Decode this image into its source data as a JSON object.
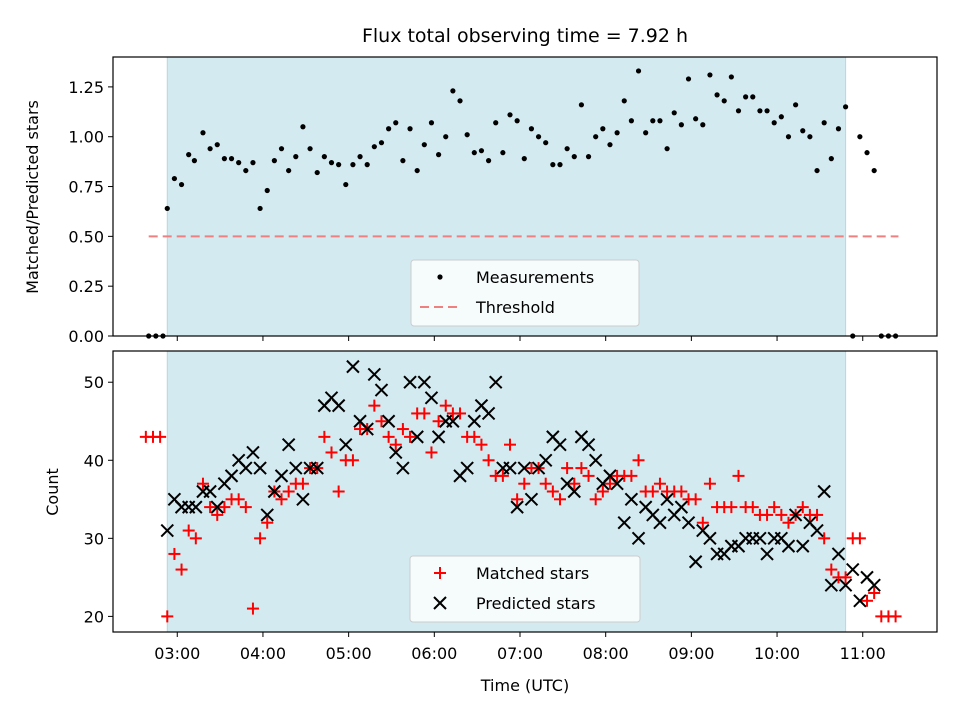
{
  "chart_data": [
    {
      "type": "scatter",
      "title": "Flux total observing time = 7.92 h",
      "xlabel": "",
      "ylabel": "Matched/Predicted stars",
      "ylim": [
        0,
        1.4
      ],
      "yticks": [
        "0.00",
        "0.25",
        "0.50",
        "0.75",
        "1.00",
        "1.25"
      ],
      "xlim": [
        "02:15",
        "11:52"
      ],
      "shaded_span": [
        "02:53",
        "10:48"
      ],
      "shade_color": "#d3eaf0",
      "threshold": {
        "name": "Threshold",
        "y": 0.5,
        "x": [
          "02:40",
          "11:25"
        ],
        "color": "#f08080"
      },
      "legend": [
        "Measurements",
        "Threshold"
      ],
      "legend_position": "lower-center",
      "series": [
        {
          "name": "Measurements",
          "marker": "dot",
          "color": "#000000",
          "x": [
            "02:40",
            "02:45",
            "02:50",
            "02:53",
            "02:58",
            "03:03",
            "03:08",
            "03:12",
            "03:18",
            "03:23",
            "03:28",
            "03:33",
            "03:38",
            "03:43",
            "03:48",
            "03:53",
            "03:58",
            "04:03",
            "04:08",
            "04:13",
            "04:18",
            "04:23",
            "04:28",
            "04:33",
            "04:38",
            "04:43",
            "04:48",
            "04:53",
            "04:58",
            "05:03",
            "05:08",
            "05:13",
            "05:18",
            "05:23",
            "05:28",
            "05:33",
            "05:38",
            "05:43",
            "05:48",
            "05:53",
            "05:58",
            "06:03",
            "06:08",
            "06:13",
            "06:18",
            "06:23",
            "06:28",
            "06:33",
            "06:38",
            "06:43",
            "06:48",
            "06:53",
            "06:58",
            "07:03",
            "07:08",
            "07:13",
            "07:18",
            "07:23",
            "07:28",
            "07:33",
            "07:38",
            "07:43",
            "07:48",
            "07:53",
            "07:58",
            "08:03",
            "08:08",
            "08:13",
            "08:18",
            "08:23",
            "08:28",
            "08:33",
            "08:38",
            "08:43",
            "08:48",
            "08:53",
            "08:58",
            "09:03",
            "09:08",
            "09:13",
            "09:18",
            "09:23",
            "09:28",
            "09:33",
            "09:38",
            "09:43",
            "09:48",
            "09:53",
            "09:58",
            "10:03",
            "10:08",
            "10:13",
            "10:18",
            "10:23",
            "10:28",
            "10:33",
            "10:38",
            "10:43",
            "10:48",
            "10:53",
            "10:58",
            "11:03",
            "11:08",
            "11:13",
            "11:18",
            "11:23"
          ],
          "y": [
            0,
            0,
            0,
            0.64,
            0.79,
            0.76,
            0.91,
            0.88,
            1.02,
            0.94,
            0.96,
            0.89,
            0.89,
            0.87,
            0.83,
            0.87,
            0.64,
            0.73,
            0.88,
            0.94,
            0.83,
            0.9,
            1.05,
            0.94,
            0.82,
            0.9,
            0.87,
            0.86,
            0.76,
            0.86,
            0.9,
            0.86,
            0.95,
            0.97,
            1.04,
            1.07,
            0.88,
            1.04,
            0.83,
            0.96,
            1.07,
            0.91,
            1.0,
            1.23,
            1.18,
            1.01,
            0.92,
            0.93,
            0.88,
            1.07,
            0.92,
            1.11,
            1.08,
            0.89,
            1.04,
            1.0,
            0.97,
            0.86,
            0.86,
            0.94,
            0.9,
            1.16,
            0.9,
            1.0,
            1.04,
            0.96,
            1.02,
            1.18,
            1.08,
            1.33,
            1.02,
            1.08,
            1.08,
            0.94,
            1.12,
            1.06,
            1.29,
            1.09,
            1.06,
            1.31,
            1.21,
            1.18,
            1.3,
            1.13,
            1.2,
            1.2,
            1.13,
            1.13,
            1.07,
            1.1,
            1.0,
            1.16,
            1.03,
            1.0,
            0.83,
            1.07,
            0.89,
            1.04,
            1.15,
            0,
            1.0,
            0.92,
            0.83,
            0,
            0,
            0
          ]
        }
      ]
    },
    {
      "type": "scatter",
      "title": "",
      "xlabel": "Time (UTC)",
      "ylabel": "Count",
      "ylim": [
        18,
        54
      ],
      "yticks": [
        "20",
        "30",
        "40",
        "50"
      ],
      "xlim": [
        "02:15",
        "11:52"
      ],
      "xticks": [
        "03:00",
        "04:00",
        "05:00",
        "06:00",
        "07:00",
        "08:00",
        "09:00",
        "10:00",
        "11:00"
      ],
      "shaded_span": [
        "02:53",
        "10:48"
      ],
      "shade_color": "#d3eaf0",
      "legend": [
        "Matched stars",
        "Predicted stars"
      ],
      "legend_position": "lower-center",
      "series": [
        {
          "name": "Matched stars",
          "marker": "plus",
          "color": "#ff0000",
          "x": [
            "02:38",
            "02:43",
            "02:48",
            "02:53",
            "02:58",
            "03:03",
            "03:08",
            "03:13",
            "03:18",
            "03:23",
            "03:28",
            "03:33",
            "03:38",
            "03:43",
            "03:48",
            "03:53",
            "03:58",
            "04:03",
            "04:08",
            "04:13",
            "04:18",
            "04:23",
            "04:28",
            "04:33",
            "04:38",
            "04:43",
            "04:48",
            "04:53",
            "04:58",
            "05:03",
            "05:08",
            "05:13",
            "05:18",
            "05:23",
            "05:28",
            "05:33",
            "05:38",
            "05:43",
            "05:48",
            "05:53",
            "05:58",
            "06:03",
            "06:08",
            "06:13",
            "06:18",
            "06:23",
            "06:28",
            "06:33",
            "06:38",
            "06:43",
            "06:48",
            "06:53",
            "06:58",
            "07:03",
            "07:08",
            "07:13",
            "07:18",
            "07:23",
            "07:28",
            "07:33",
            "07:38",
            "07:43",
            "07:48",
            "07:53",
            "07:58",
            "08:03",
            "08:08",
            "08:13",
            "08:18",
            "08:23",
            "08:28",
            "08:33",
            "08:38",
            "08:43",
            "08:48",
            "08:53",
            "08:58",
            "09:03",
            "09:08",
            "09:13",
            "09:18",
            "09:23",
            "09:28",
            "09:33",
            "09:38",
            "09:43",
            "09:48",
            "09:53",
            "09:58",
            "10:03",
            "10:08",
            "10:13",
            "10:18",
            "10:23",
            "10:28",
            "10:33",
            "10:38",
            "10:43",
            "10:48",
            "10:53",
            "10:58",
            "11:03",
            "11:08",
            "11:13",
            "11:18",
            "11:23"
          ],
          "y": [
            43,
            43,
            43,
            20,
            28,
            26,
            31,
            30,
            37,
            34,
            33,
            34,
            35,
            35,
            34,
            21,
            30,
            32,
            36,
            35,
            36,
            37,
            37,
            39,
            39,
            43,
            41,
            36,
            40,
            40,
            44,
            44,
            47,
            45,
            43,
            42,
            44,
            43,
            46,
            46,
            41,
            45,
            47,
            46,
            46,
            43,
            43,
            42,
            40,
            38,
            38,
            42,
            35,
            37,
            39,
            39,
            37,
            36,
            35,
            39,
            37,
            39,
            38,
            35,
            36,
            37,
            38,
            38,
            38,
            40,
            36,
            36,
            37,
            36,
            36,
            36,
            35,
            35,
            32,
            37,
            34,
            34,
            34,
            38,
            34,
            34,
            33,
            33,
            34,
            33,
            32,
            33,
            34,
            33,
            33,
            30,
            26,
            25,
            25,
            30,
            30,
            22,
            23,
            20,
            20,
            20
          ]
        },
        {
          "name": "Predicted stars",
          "marker": "x",
          "color": "#000000",
          "x": [
            "02:53",
            "02:58",
            "03:03",
            "03:08",
            "03:13",
            "03:18",
            "03:23",
            "03:28",
            "03:33",
            "03:38",
            "03:43",
            "03:48",
            "03:53",
            "03:58",
            "04:03",
            "04:08",
            "04:13",
            "04:18",
            "04:23",
            "04:28",
            "04:33",
            "04:38",
            "04:43",
            "04:48",
            "04:53",
            "04:58",
            "05:03",
            "05:08",
            "05:13",
            "05:18",
            "05:23",
            "05:28",
            "05:33",
            "05:38",
            "05:43",
            "05:48",
            "05:53",
            "05:58",
            "06:03",
            "06:08",
            "06:13",
            "06:18",
            "06:23",
            "06:28",
            "06:33",
            "06:38",
            "06:43",
            "06:48",
            "06:53",
            "06:58",
            "07:03",
            "07:08",
            "07:13",
            "07:18",
            "07:23",
            "07:28",
            "07:33",
            "07:38",
            "07:43",
            "07:48",
            "07:53",
            "07:58",
            "08:03",
            "08:08",
            "08:13",
            "08:18",
            "08:23",
            "08:28",
            "08:33",
            "08:38",
            "08:43",
            "08:48",
            "08:53",
            "08:58",
            "09:03",
            "09:08",
            "09:13",
            "09:18",
            "09:23",
            "09:28",
            "09:33",
            "09:38",
            "09:43",
            "09:48",
            "09:53",
            "09:58",
            "10:03",
            "10:08",
            "10:13",
            "10:18",
            "10:23",
            "10:28",
            "10:33",
            "10:38",
            "10:43",
            "10:48",
            "10:53",
            "10:58",
            "11:03",
            "11:08"
          ],
          "y": [
            31,
            35,
            34,
            34,
            34,
            36,
            36,
            34,
            37,
            38,
            40,
            39,
            41,
            39,
            33,
            36,
            38,
            42,
            39,
            35,
            39,
            39,
            47,
            48,
            47,
            42,
            52,
            45,
            44,
            51,
            49,
            45,
            41,
            39,
            50,
            43,
            50,
            48,
            43,
            45,
            45,
            38,
            39,
            45,
            47,
            46,
            50,
            39,
            39,
            34,
            39,
            35,
            39,
            40,
            43,
            42,
            37,
            36,
            43,
            42,
            40,
            37,
            38,
            37,
            32,
            35,
            30,
            34,
            33,
            32,
            35,
            33,
            34,
            32,
            27,
            31,
            30,
            28,
            28,
            29,
            29,
            30,
            30,
            30,
            28,
            30,
            30,
            29,
            33,
            29,
            32,
            31,
            36,
            24,
            28,
            24,
            26,
            22,
            25,
            24
          ]
        }
      ]
    }
  ]
}
